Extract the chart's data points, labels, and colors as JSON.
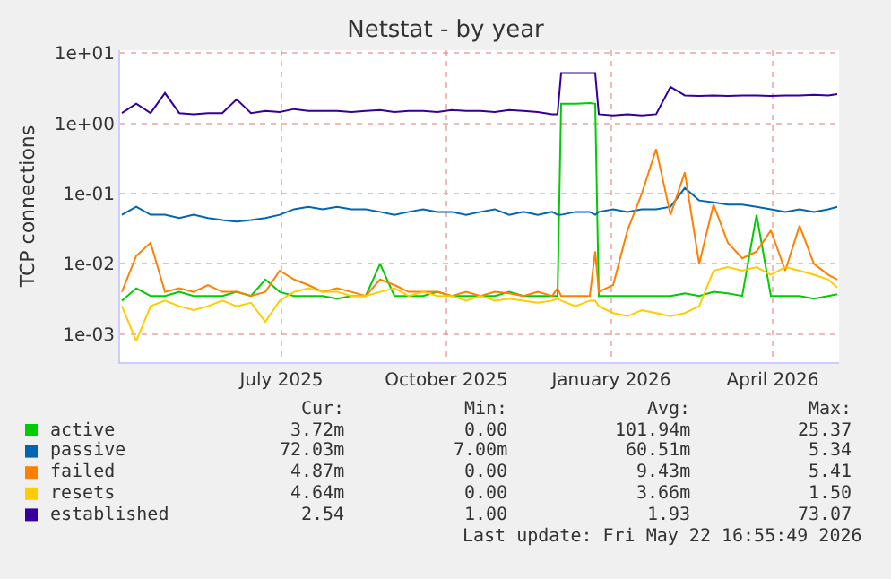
{
  "chart_data": {
    "type": "line",
    "title": "Netstat - by year",
    "ylabel": "TCP connections",
    "x": [
      "2025-04-18",
      "2025-04-26",
      "2025-05-04",
      "2025-05-12",
      "2025-05-20",
      "2025-05-28",
      "2025-06-05",
      "2025-06-13",
      "2025-06-21",
      "2025-06-29",
      "2025-07-07",
      "2025-07-15",
      "2025-07-23",
      "2025-07-31",
      "2025-08-08",
      "2025-08-16",
      "2025-08-24",
      "2025-09-01",
      "2025-09-09",
      "2025-09-17",
      "2025-09-25",
      "2025-10-03",
      "2025-10-11",
      "2025-10-19",
      "2025-10-27",
      "2025-11-04",
      "2025-11-12",
      "2025-11-20",
      "2025-11-28",
      "2025-12-06",
      "2025-12-14",
      "2025-12-17",
      "2025-12-19",
      "2025-12-27",
      "2026-01-04",
      "2026-01-07",
      "2026-01-09",
      "2026-01-17",
      "2026-01-25",
      "2026-02-02",
      "2026-02-10",
      "2026-02-18",
      "2026-02-26",
      "2026-03-06",
      "2026-03-14",
      "2026-03-22",
      "2026-03-30",
      "2026-04-07",
      "2026-04-15",
      "2026-04-23",
      "2026-05-01",
      "2026-05-09",
      "2026-05-17",
      "2026-05-22"
    ],
    "series": [
      {
        "name": "active",
        "color": "#00cc00",
        "values": [
          0.003,
          0.0045,
          0.0035,
          0.0035,
          0.004,
          0.0035,
          0.0035,
          0.0035,
          0.004,
          0.0035,
          0.006,
          0.004,
          0.0035,
          0.0035,
          0.0035,
          0.0032,
          0.0035,
          0.0035,
          0.01,
          0.0035,
          0.0035,
          0.0035,
          0.004,
          0.0035,
          0.0035,
          0.0035,
          0.0035,
          0.004,
          0.0035,
          0.0035,
          0.0035,
          0.0035,
          1.9,
          1.9,
          1.95,
          1.9,
          0.0035,
          0.0035,
          0.0035,
          0.0035,
          0.0035,
          0.0035,
          0.0038,
          0.0035,
          0.004,
          0.0038,
          0.0035,
          0.05,
          0.0035,
          0.0035,
          0.0035,
          0.0032,
          0.0035,
          0.0037
        ]
      },
      {
        "name": "passive",
        "color": "#0066b3",
        "values": [
          0.05,
          0.065,
          0.05,
          0.05,
          0.045,
          0.05,
          0.045,
          0.042,
          0.04,
          0.042,
          0.045,
          0.05,
          0.06,
          0.065,
          0.06,
          0.065,
          0.06,
          0.06,
          0.055,
          0.05,
          0.055,
          0.06,
          0.055,
          0.055,
          0.05,
          0.055,
          0.06,
          0.05,
          0.055,
          0.05,
          0.055,
          0.05,
          0.05,
          0.055,
          0.055,
          0.05,
          0.055,
          0.06,
          0.055,
          0.06,
          0.06,
          0.065,
          0.12,
          0.08,
          0.075,
          0.07,
          0.07,
          0.065,
          0.06,
          0.055,
          0.06,
          0.055,
          0.06,
          0.065
        ]
      },
      {
        "name": "failed",
        "color": "#ff8000",
        "values": [
          0.004,
          0.013,
          0.02,
          0.004,
          0.0045,
          0.004,
          0.005,
          0.004,
          0.004,
          0.0035,
          0.004,
          0.008,
          0.006,
          0.005,
          0.004,
          0.0045,
          0.004,
          0.0035,
          0.006,
          0.005,
          0.004,
          0.004,
          0.004,
          0.0035,
          0.004,
          0.0035,
          0.004,
          0.0038,
          0.0035,
          0.004,
          0.0035,
          0.0045,
          0.0035,
          0.0035,
          0.0035,
          0.015,
          0.004,
          0.005,
          0.03,
          0.1,
          0.43,
          0.05,
          0.2,
          0.01,
          0.07,
          0.02,
          0.012,
          0.015,
          0.03,
          0.008,
          0.035,
          0.01,
          0.007,
          0.006
        ]
      },
      {
        "name": "resets",
        "color": "#ffcc00",
        "values": [
          0.0025,
          0.0008,
          0.0025,
          0.003,
          0.0025,
          0.0022,
          0.0025,
          0.003,
          0.0025,
          0.0028,
          0.0015,
          0.003,
          0.004,
          0.0045,
          0.004,
          0.004,
          0.0035,
          0.0035,
          0.004,
          0.0045,
          0.0035,
          0.004,
          0.0035,
          0.0035,
          0.003,
          0.0035,
          0.003,
          0.0032,
          0.003,
          0.0028,
          0.003,
          0.0032,
          0.003,
          0.0025,
          0.003,
          0.003,
          0.0025,
          0.002,
          0.0018,
          0.0022,
          0.002,
          0.0018,
          0.002,
          0.0025,
          0.008,
          0.009,
          0.008,
          0.009,
          0.007,
          0.009,
          0.008,
          0.007,
          0.006,
          0.0046
        ]
      },
      {
        "name": "established",
        "color": "#330099",
        "values": [
          1.4,
          1.9,
          1.4,
          2.7,
          1.4,
          1.35,
          1.4,
          1.4,
          2.2,
          1.4,
          1.5,
          1.45,
          1.6,
          1.5,
          1.5,
          1.5,
          1.45,
          1.5,
          1.55,
          1.45,
          1.5,
          1.5,
          1.45,
          1.55,
          1.5,
          1.5,
          1.45,
          1.55,
          1.5,
          1.45,
          1.35,
          1.35,
          5.2,
          5.2,
          5.2,
          5.2,
          1.35,
          1.3,
          1.35,
          1.3,
          1.35,
          3.3,
          2.5,
          2.45,
          2.5,
          2.45,
          2.5,
          2.5,
          2.45,
          2.5,
          2.5,
          2.55,
          2.5,
          2.6
        ]
      }
    ],
    "log": "y",
    "ylim": [
      0.0004,
      11
    ],
    "yticks": [
      {
        "value": 0.001,
        "label": "1e-03"
      },
      {
        "value": 0.01,
        "label": "1e-02"
      },
      {
        "value": 0.1,
        "label": "1e-01"
      },
      {
        "value": 1,
        "label": "1e+00"
      },
      {
        "value": 10,
        "label": "1e+01"
      }
    ],
    "xlim": [
      "2025-04-17",
      "2026-05-23"
    ],
    "xticks": [
      {
        "value": "2025-07-16",
        "label": "July 2025"
      },
      {
        "value": "2025-10-16",
        "label": "October 2025"
      },
      {
        "value": "2026-01-16",
        "label": "January 2026"
      },
      {
        "value": "2026-04-16",
        "label": "April 2026"
      }
    ],
    "grid": true,
    "legend": "bottom left",
    "line_style": "solid",
    "annotations": [
      "Cur:",
      "Min:",
      "Avg:",
      "Max:",
      "3.72m",
      "0.00",
      "101.94m",
      "25.37",
      "72.03m",
      "7.00m",
      "60.51m",
      "5.34",
      "4.87m",
      "0.00",
      "9.43m",
      "5.41",
      "4.64m",
      "0.00",
      "3.66m",
      "1.50",
      "2.54",
      "1.00",
      "1.93",
      "73.07",
      "Last update: Fri May 22 16:55:49 2026"
    ]
  }
}
